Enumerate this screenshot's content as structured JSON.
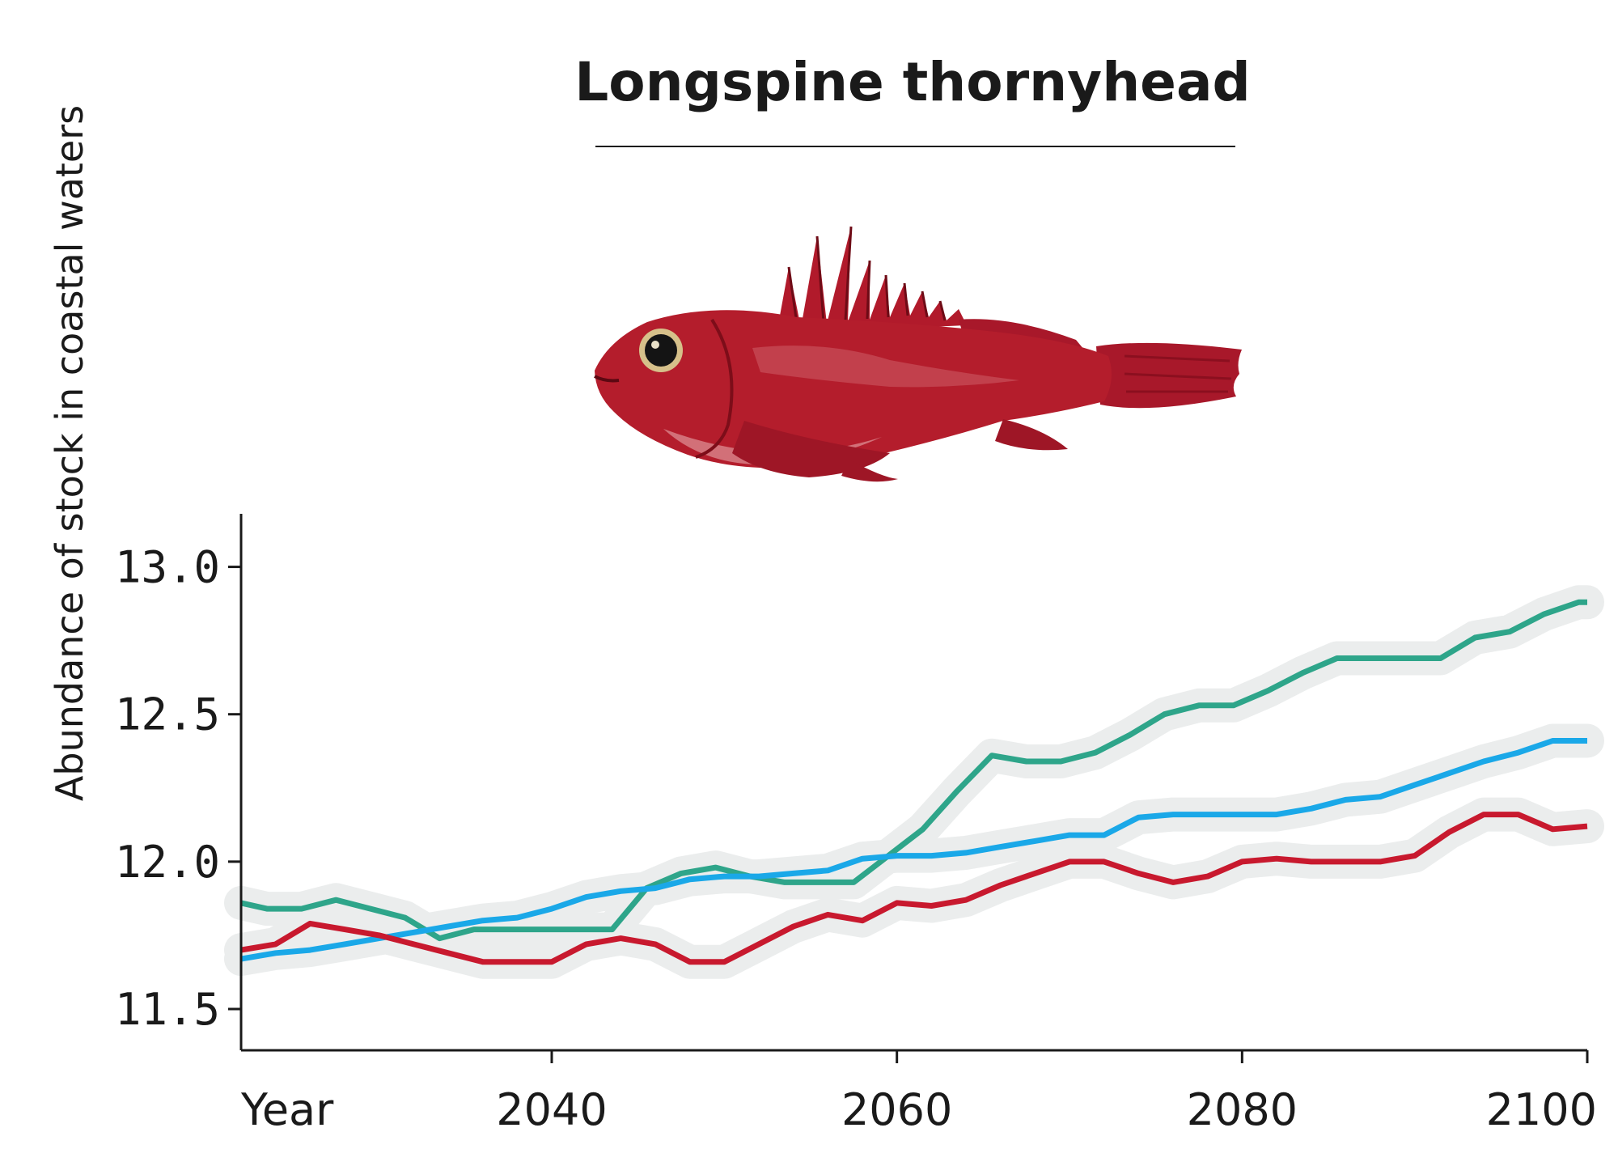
{
  "chart_data": {
    "type": "line",
    "title": "Longspine thornyhead",
    "ylabel": "Abundance of stock in coastal waters",
    "xlabel": "Year",
    "xlim": [
      2022,
      2100
    ],
    "ylim": [
      11.36,
      13.18
    ],
    "x_ticks": [
      2040,
      2060,
      2080,
      2100
    ],
    "x_tick_labels": [
      "2040",
      "2060",
      "2080",
      "2100"
    ],
    "y_ticks": [
      11.5,
      12.0,
      12.5,
      13.0
    ],
    "y_tick_labels": [
      "11.5",
      "12.0",
      "12.5",
      "13.0"
    ],
    "grid": false,
    "legend": "none",
    "uncertainty_band_color": "#ebeded",
    "series": [
      {
        "color": "#2ea58a",
        "x": [
          2022,
          2023.5,
          2025.5,
          2027.5,
          2029.5,
          2031.5,
          2033.5,
          2035.5,
          2037.5,
          2039.5,
          2041.5,
          2043.5,
          2045.5,
          2047.5,
          2049.5,
          2051.5,
          2053.5,
          2055.5,
          2057.5,
          2059.5,
          2061.5,
          2063.5,
          2065.5,
          2067.5,
          2069.5,
          2071.5,
          2073.5,
          2075.5,
          2077.5,
          2079.5,
          2081.5,
          2083.5,
          2085.5,
          2087.5,
          2089.5,
          2091.5,
          2093.5,
          2095.5,
          2097.5,
          2099.5,
          2100
        ],
        "values": [
          11.86,
          11.84,
          11.84,
          11.87,
          11.84,
          11.81,
          11.74,
          11.77,
          11.77,
          11.77,
          11.77,
          11.77,
          11.91,
          11.96,
          11.98,
          11.95,
          11.93,
          11.93,
          11.93,
          12.02,
          12.11,
          12.24,
          12.36,
          12.34,
          12.34,
          12.37,
          12.43,
          12.5,
          12.53,
          12.53,
          12.58,
          12.64,
          12.69,
          12.69,
          12.69,
          12.69,
          12.76,
          12.78,
          12.84,
          12.88,
          12.88
        ]
      },
      {
        "color": "#1aa8e8",
        "x": [
          2022,
          2024,
          2026,
          2028,
          2030,
          2032,
          2034,
          2036,
          2038,
          2040,
          2042,
          2044,
          2046,
          2048,
          2050,
          2052,
          2054,
          2056,
          2058,
          2060,
          2062,
          2064,
          2066,
          2068,
          2070,
          2072,
          2074,
          2076,
          2078,
          2080,
          2082,
          2084,
          2086,
          2088,
          2090,
          2092,
          2094,
          2096,
          2098,
          2100
        ],
        "values": [
          11.67,
          11.69,
          11.7,
          11.72,
          11.74,
          11.76,
          11.78,
          11.8,
          11.81,
          11.84,
          11.88,
          11.9,
          11.91,
          11.94,
          11.95,
          11.95,
          11.96,
          11.97,
          12.01,
          12.02,
          12.02,
          12.03,
          12.05,
          12.07,
          12.09,
          12.09,
          12.15,
          12.16,
          12.16,
          12.16,
          12.16,
          12.18,
          12.21,
          12.22,
          12.26,
          12.3,
          12.34,
          12.37,
          12.41,
          12.41
        ]
      },
      {
        "color": "#c8192e",
        "x": [
          2022,
          2024,
          2026,
          2028,
          2030,
          2032,
          2034,
          2036,
          2038,
          2040,
          2042,
          2044,
          2046,
          2048,
          2050,
          2052,
          2054,
          2056,
          2058,
          2060,
          2062,
          2064,
          2066,
          2068,
          2070,
          2072,
          2074,
          2076,
          2078,
          2080,
          2082,
          2084,
          2086,
          2088,
          2090,
          2092,
          2094,
          2096,
          2098,
          2100
        ],
        "values": [
          11.7,
          11.72,
          11.79,
          11.77,
          11.75,
          11.72,
          11.69,
          11.66,
          11.66,
          11.66,
          11.72,
          11.74,
          11.72,
          11.66,
          11.66,
          11.72,
          11.78,
          11.82,
          11.8,
          11.86,
          11.85,
          11.87,
          11.92,
          11.96,
          12.0,
          12.0,
          11.96,
          11.93,
          11.95,
          12.0,
          12.01,
          12.0,
          12.0,
          12.0,
          12.02,
          12.1,
          12.16,
          12.16,
          12.11,
          12.12
        ]
      }
    ]
  }
}
